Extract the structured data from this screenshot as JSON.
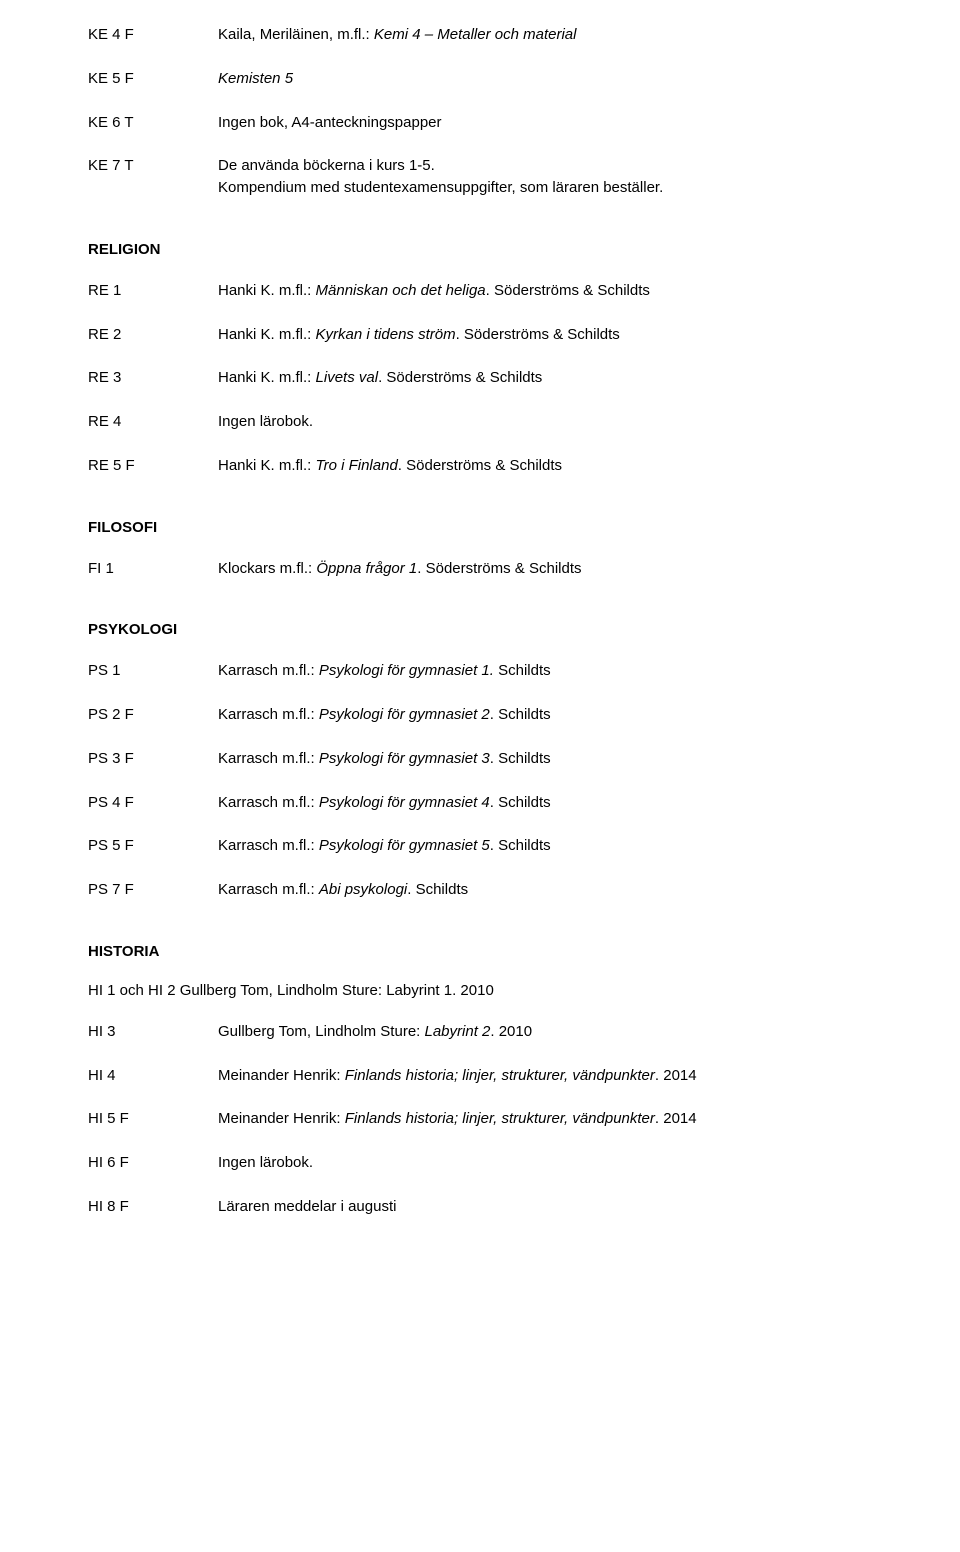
{
  "sections": [
    {
      "heading": null,
      "rows": [
        {
          "code": "KE 4 F",
          "parts": [
            {
              "t": "Kaila, Meriläinen, m.fl.: ",
              "i": false
            },
            {
              "t": "Kemi 4 – Metaller och material",
              "i": true
            }
          ]
        },
        {
          "code": "KE 5 F",
          "parts": [
            {
              "t": "Kemisten 5",
              "i": true
            }
          ]
        },
        {
          "code": "KE 6 T",
          "parts": [
            {
              "t": "Ingen bok, A4-anteckningspapper",
              "i": false
            }
          ]
        },
        {
          "code": "KE 7 T",
          "parts": [
            {
              "t": "De använda böckerna i kurs 1-5.\nKompendium med studentexamensuppgifter, som läraren beställer.",
              "i": false
            }
          ]
        }
      ]
    },
    {
      "heading": "RELIGION",
      "rows": [
        {
          "code": "RE 1",
          "parts": [
            {
              "t": "Hanki K. m.fl.: ",
              "i": false
            },
            {
              "t": "Människan och det heliga",
              "i": true
            },
            {
              "t": ". Söderströms & Schildts",
              "i": false
            }
          ]
        },
        {
          "code": "RE 2",
          "parts": [
            {
              "t": "Hanki K. m.fl.: ",
              "i": false
            },
            {
              "t": "Kyrkan i tidens ström",
              "i": true
            },
            {
              "t": ". Söderströms & Schildts",
              "i": false
            }
          ]
        },
        {
          "code": "RE 3",
          "parts": [
            {
              "t": "Hanki K. m.fl.: ",
              "i": false
            },
            {
              "t": "Livets val",
              "i": true
            },
            {
              "t": ". Söderströms & Schildts",
              "i": false
            }
          ]
        },
        {
          "code": "RE 4",
          "parts": [
            {
              "t": "Ingen lärobok.",
              "i": false
            }
          ]
        },
        {
          "code": "RE 5 F",
          "parts": [
            {
              "t": "Hanki K. m.fl.: ",
              "i": false
            },
            {
              "t": "Tro i Finland",
              "i": true
            },
            {
              "t": ". Söderströms & Schildts",
              "i": false
            }
          ]
        }
      ]
    },
    {
      "heading": "FILOSOFI",
      "rows": [
        {
          "code": "FI 1",
          "parts": [
            {
              "t": "Klockars m.fl.: ",
              "i": false
            },
            {
              "t": "Öppna frågor 1",
              "i": true
            },
            {
              "t": ". Söderströms & Schildts",
              "i": false
            }
          ]
        }
      ]
    },
    {
      "heading": "PSYKOLOGI",
      "rows": [
        {
          "code": "PS 1",
          "parts": [
            {
              "t": "Karrasch m.fl.: ",
              "i": false
            },
            {
              "t": "Psykologi för gymnasiet 1.",
              "i": true
            },
            {
              "t": " Schildts",
              "i": false
            }
          ]
        },
        {
          "code": "PS 2 F",
          "parts": [
            {
              "t": "Karrasch m.fl.: ",
              "i": false
            },
            {
              "t": "Psykologi för gymnasiet 2",
              "i": true
            },
            {
              "t": ". Schildts",
              "i": false
            }
          ]
        },
        {
          "code": "PS 3 F",
          "parts": [
            {
              "t": "Karrasch m.fl.: ",
              "i": false
            },
            {
              "t": "Psykologi för gymnasiet 3",
              "i": true
            },
            {
              "t": ". Schildts",
              "i": false
            }
          ]
        },
        {
          "code": "PS 4 F",
          "parts": [
            {
              "t": "Karrasch m.fl.: ",
              "i": false
            },
            {
              "t": "Psykologi för gymnasiet 4",
              "i": true
            },
            {
              "t": ". Schildts",
              "i": false
            }
          ]
        },
        {
          "code": "PS 5 F",
          "parts": [
            {
              "t": "Karrasch m.fl.: ",
              "i": false
            },
            {
              "t": "Psykologi för gymnasiet 5",
              "i": true
            },
            {
              "t": ". Schildts",
              "i": false
            }
          ]
        },
        {
          "code": "PS 7 F",
          "parts": [
            {
              "t": "Karrasch m.fl.: ",
              "i": false
            },
            {
              "t": "Abi psykologi",
              "i": true
            },
            {
              "t": ". Schildts",
              "i": false
            }
          ]
        }
      ]
    },
    {
      "heading": "HISTORIA",
      "inline_row": {
        "left": "HI 1 och HI 2 ",
        "parts": [
          {
            "t": "Gullberg Tom, Lindholm Sture: ",
            "i": false
          },
          {
            "t": "Labyrint 1",
            "i": true
          },
          {
            "t": ". 2010",
            "i": false
          }
        ]
      },
      "rows": [
        {
          "code": "HI 3",
          "parts": [
            {
              "t": "Gullberg Tom, Lindholm Sture: ",
              "i": false
            },
            {
              "t": "Labyrint 2",
              "i": true
            },
            {
              "t": ". 2010",
              "i": false
            }
          ]
        },
        {
          "code": "HI 4",
          "parts": [
            {
              "t": "Meinander Henrik: ",
              "i": false
            },
            {
              "t": "Finlands historia; linjer, strukturer, vändpunkter",
              "i": true
            },
            {
              "t": ". 2014",
              "i": false
            }
          ]
        },
        {
          "code": "HI 5 F",
          "parts": [
            {
              "t": "Meinander Henrik: ",
              "i": false
            },
            {
              "t": "Finlands historia; linjer, strukturer, vändpunkter",
              "i": true
            },
            {
              "t": ". 2014",
              "i": false
            }
          ]
        },
        {
          "code": "HI 6 F",
          "parts": [
            {
              "t": "Ingen lärobok.",
              "i": false
            }
          ]
        },
        {
          "code": "HI 8 F",
          "parts": [
            {
              "t": "Läraren meddelar i augusti",
              "i": false
            }
          ]
        }
      ]
    }
  ]
}
